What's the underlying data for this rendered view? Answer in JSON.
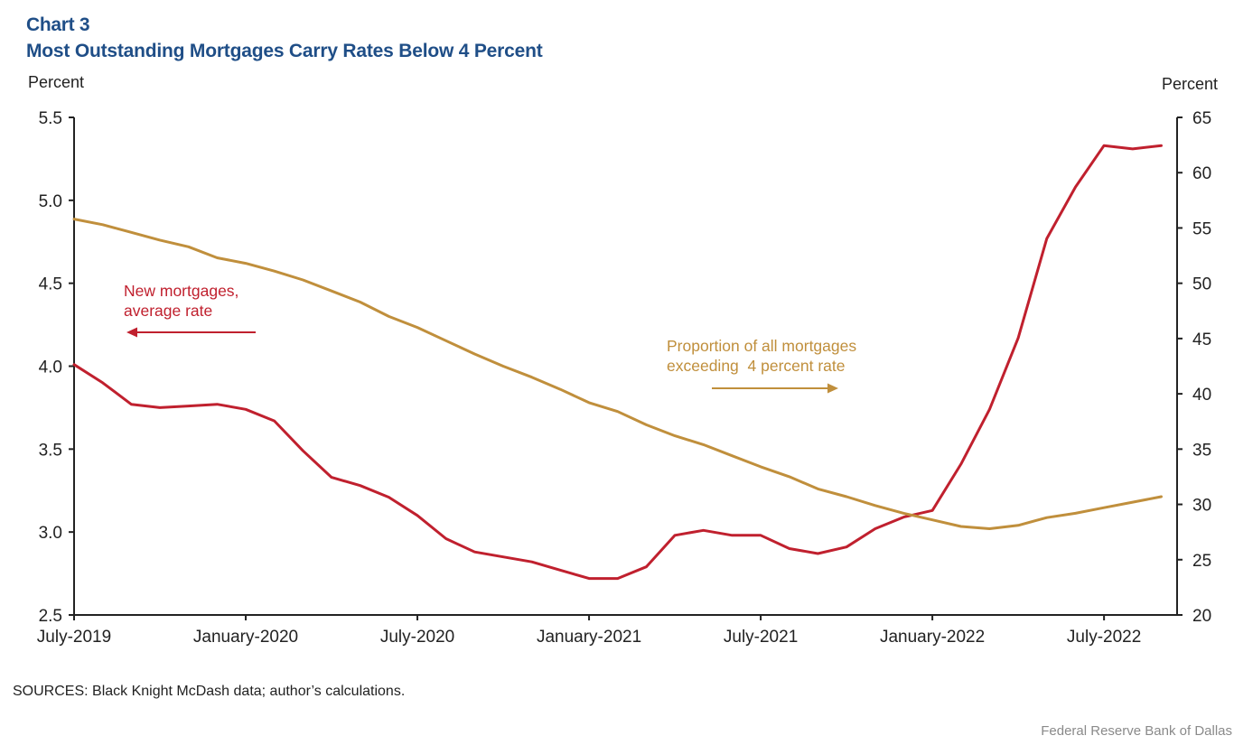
{
  "header": {
    "chart_number": "Chart 3",
    "title": "Most Outstanding Mortgages Carry Rates Below 4 Percent"
  },
  "footer": {
    "source": "SOURCES: Black Knight McDash data; author’s calculations.",
    "credit": "Federal Reserve Bank of Dallas"
  },
  "colors": {
    "title": "#1f4e87",
    "new_mortgage_rate": "#c0202e",
    "proportion_above_4": "#c08f3c",
    "axis": "#222222"
  },
  "chart_data": {
    "type": "line",
    "title": "Most Outstanding Mortgages Carry Rates Below 4 Percent",
    "subtitle": "Chart 3",
    "xlabel": "",
    "ylabel_left": "Percent",
    "ylabel_right": "Percent",
    "ylim_left": [
      2.5,
      5.5
    ],
    "ylim_right": [
      20,
      65
    ],
    "yticks_left": [
      "2.5",
      "3.0",
      "3.5",
      "4.0",
      "4.5",
      "5.0",
      "5.5"
    ],
    "yticks_right": [
      "20",
      "25",
      "30",
      "35",
      "40",
      "45",
      "50",
      "55",
      "60",
      "65"
    ],
    "xticks": [
      {
        "label": "July-2019",
        "index": 0
      },
      {
        "label": "January-2020",
        "index": 6
      },
      {
        "label": "July-2020",
        "index": 12
      },
      {
        "label": "January-2021",
        "index": 18
      },
      {
        "label": "July-2021",
        "index": 24
      },
      {
        "label": "January-2022",
        "index": 30
      },
      {
        "label": "July-2022",
        "index": 36
      }
    ],
    "grid": false,
    "legend": "inline annotations",
    "x": [
      "2019-07",
      "2019-08",
      "2019-09",
      "2019-10",
      "2019-11",
      "2019-12",
      "2020-01",
      "2020-02",
      "2020-03",
      "2020-04",
      "2020-05",
      "2020-06",
      "2020-07",
      "2020-08",
      "2020-09",
      "2020-10",
      "2020-11",
      "2020-12",
      "2021-01",
      "2021-02",
      "2021-03",
      "2021-04",
      "2021-05",
      "2021-06",
      "2021-07",
      "2021-08",
      "2021-09",
      "2021-10",
      "2021-11",
      "2021-12",
      "2022-01",
      "2022-02",
      "2022-03",
      "2022-04",
      "2022-05",
      "2022-06",
      "2022-07",
      "2022-08",
      "2022-09"
    ],
    "series": [
      {
        "name": "New mortgages, average rate",
        "axis": "left",
        "annotation": [
          "New mortgages,",
          "average rate"
        ],
        "arrow": "left",
        "values": [
          4.01,
          3.9,
          3.77,
          3.75,
          3.76,
          3.77,
          3.74,
          3.67,
          3.49,
          3.33,
          3.28,
          3.21,
          3.1,
          2.96,
          2.88,
          2.85,
          2.82,
          2.77,
          2.72,
          2.72,
          2.79,
          2.98,
          3.01,
          2.98,
          2.98,
          2.9,
          2.87,
          2.91,
          3.02,
          3.09,
          3.13,
          3.41,
          3.74,
          4.17,
          4.77,
          5.08,
          5.33,
          5.31,
          5.33
        ]
      },
      {
        "name": "Proportion of all mortgages exceeding 4 percent rate",
        "axis": "right",
        "annotation": [
          "Proportion of all mortgages",
          "exceeding  4 percent rate"
        ],
        "arrow": "right",
        "values": [
          55.8,
          55.3,
          54.6,
          53.9,
          53.3,
          52.3,
          51.8,
          51.1,
          50.3,
          49.3,
          48.3,
          47.0,
          46.0,
          44.8,
          43.6,
          42.5,
          41.5,
          40.4,
          39.2,
          38.4,
          37.2,
          36.2,
          35.4,
          34.4,
          33.4,
          32.5,
          31.4,
          30.7,
          29.9,
          29.2,
          28.6,
          28.0,
          27.8,
          28.1,
          28.8,
          29.2,
          29.7,
          30.2,
          30.7
        ]
      }
    ]
  }
}
